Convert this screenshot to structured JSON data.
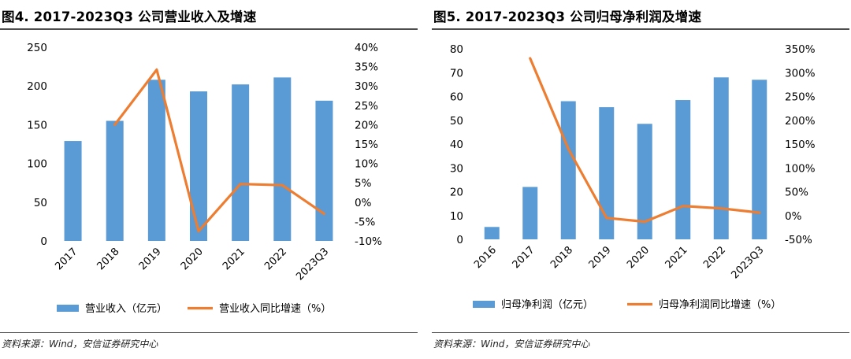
{
  "colors": {
    "bar": "#5B9BD5",
    "line": "#ED7D31",
    "rule": "#4d4d4d"
  },
  "chart_data": [
    {
      "type": "bar+line",
      "title": "图4. 2017-2023Q3 公司营业收入及增速",
      "categories": [
        "2017",
        "2018",
        "2019",
        "2020",
        "2021",
        "2022",
        "2023Q3"
      ],
      "series": [
        {
          "name": "营业收入（亿元）",
          "kind": "bar",
          "axis": "left",
          "values": [
            129,
            155,
            208,
            193,
            202,
            211,
            181
          ]
        },
        {
          "name": "营业收入同比增速（%）",
          "kind": "line",
          "axis": "right",
          "values": [
            null,
            20.0,
            34.2,
            -7.5,
            4.7,
            4.4,
            -3.0
          ]
        }
      ],
      "left_axis": {
        "min": 0,
        "max": 250,
        "ticks": [
          "0",
          "50",
          "100",
          "150",
          "200",
          "250"
        ]
      },
      "right_axis": {
        "min": -10,
        "max": 40,
        "ticks": [
          "-10%",
          "-5%",
          "0%",
          "5%",
          "10%",
          "15%",
          "20%",
          "25%",
          "30%",
          "35%",
          "40%"
        ]
      },
      "legend_position": "bottom",
      "source": "资料来源：Wind，安信证券研究中心"
    },
    {
      "type": "bar+line",
      "title": "图5. 2017-2023Q3 公司归母净利润及增速",
      "categories": [
        "2016",
        "2017",
        "2018",
        "2019",
        "2020",
        "2021",
        "2022",
        "2023Q3"
      ],
      "series": [
        {
          "name": "归母净利润（亿元）",
          "kind": "bar",
          "axis": "left",
          "values": [
            5.2,
            22,
            58,
            55.5,
            48.5,
            58.5,
            68,
            67
          ]
        },
        {
          "name": "归母净利润同比增速（%）",
          "kind": "line",
          "axis": "right",
          "values": [
            null,
            330,
            140,
            -5,
            -13,
            20,
            15,
            6
          ]
        }
      ],
      "left_axis": {
        "min": 0,
        "max": 80,
        "ticks": [
          "0",
          "10",
          "20",
          "30",
          "40",
          "50",
          "60",
          "70",
          "80"
        ]
      },
      "right_axis": {
        "min": -50,
        "max": 350,
        "ticks": [
          "-50%",
          "0%",
          "50%",
          "100%",
          "150%",
          "200%",
          "250%",
          "300%",
          "350%"
        ]
      },
      "legend_position": "bottom",
      "source": "资料来源：Wind，安信证券研究中心"
    }
  ]
}
